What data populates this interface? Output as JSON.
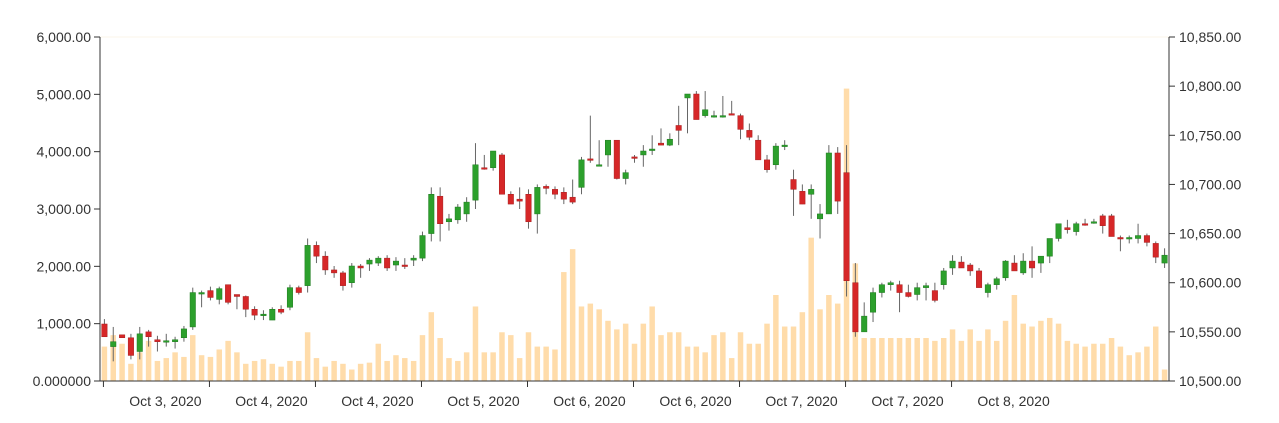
{
  "chart_data": {
    "type": "candlestick+bar",
    "grid": false,
    "legend": "none",
    "colors": {
      "up": "#2ca02c",
      "down": "#d62728",
      "volume": "#ffdcaa",
      "wick": "#666666"
    },
    "left_axis": {
      "ticks": [
        0,
        1000,
        2000,
        3000,
        4000,
        5000,
        6000
      ],
      "tick_labels": [
        "0.000000",
        "1,000.00",
        "2,000.00",
        "3,000.00",
        "4,000.00",
        "5,000.00",
        "6,000.00"
      ],
      "ylim": [
        0,
        6000
      ]
    },
    "right_axis": {
      "ticks": [
        10500,
        10550,
        10600,
        10650,
        10700,
        10750,
        10800,
        10850
      ],
      "tick_labels": [
        "10,500.00",
        "10,550.00",
        "10,600.00",
        "10,650.00",
        "10,700.00",
        "10,750.00",
        "10,800.00",
        "10,850.00"
      ],
      "ylim": [
        10500,
        10850
      ]
    },
    "x_tick_labels": [
      "Oct 3, 2020",
      "Oct 4, 2020",
      "Oct 4, 2020",
      "Oct 5, 2020",
      "Oct 6, 2020",
      "Oct 6, 2020",
      "Oct 7, 2020",
      "Oct 7, 2020",
      "Oct 8, 2020"
    ],
    "x_tick_positions": [
      6,
      18,
      30,
      42,
      54,
      66,
      78,
      90,
      102
    ],
    "candles": [
      [
        10558,
        10563,
        10545,
        10545
      ],
      [
        10535,
        10555,
        10520,
        10540
      ],
      [
        10547,
        10546,
        10545,
        10544
      ],
      [
        10544,
        10548,
        10522,
        10526
      ],
      [
        10530,
        10555,
        10522,
        10548
      ],
      [
        10550,
        10552,
        10535,
        10545
      ],
      [
        10542,
        10546,
        10530,
        10540
      ],
      [
        10540,
        10548,
        10535,
        10541
      ],
      [
        10540,
        10545,
        10533,
        10542
      ],
      [
        10544,
        10556,
        10540,
        10553
      ],
      [
        10555,
        10595,
        10552,
        10590
      ],
      [
        10590,
        10592,
        10575,
        10590
      ],
      [
        10592,
        10596,
        10582,
        10585
      ],
      [
        10583,
        10596,
        10578,
        10594
      ],
      [
        10598,
        10598,
        10578,
        10580
      ],
      [
        10588,
        10588,
        10573,
        10586
      ],
      [
        10586,
        10587,
        10565,
        10573
      ],
      [
        10573,
        10576,
        10562,
        10567
      ],
      [
        10568,
        10572,
        10562,
        10568
      ],
      [
        10562,
        10575,
        10562,
        10573
      ],
      [
        10573,
        10577,
        10568,
        10570
      ],
      [
        10575,
        10598,
        10572,
        10595
      ],
      [
        10595,
        10597,
        10588,
        10590
      ],
      [
        10597,
        10645,
        10590,
        10638
      ],
      [
        10638,
        10642,
        10620,
        10627
      ],
      [
        10627,
        10632,
        10608,
        10613
      ],
      [
        10613,
        10617,
        10605,
        10610
      ],
      [
        10610,
        10612,
        10592,
        10597
      ],
      [
        10600,
        10620,
        10595,
        10617
      ],
      [
        10617,
        10619,
        10605,
        10615
      ],
      [
        10619,
        10625,
        10612,
        10623
      ],
      [
        10620,
        10627,
        10617,
        10625
      ],
      [
        10625,
        10628,
        10612,
        10615
      ],
      [
        10618,
        10626,
        10612,
        10622
      ],
      [
        10618,
        10625,
        10614,
        10617
      ],
      [
        10623,
        10628,
        10617,
        10625
      ],
      [
        10625,
        10652,
        10622,
        10648
      ],
      [
        10650,
        10697,
        10642,
        10690
      ],
      [
        10688,
        10697,
        10642,
        10660
      ],
      [
        10662,
        10670,
        10653,
        10665
      ],
      [
        10664,
        10680,
        10660,
        10677
      ],
      [
        10670,
        10687,
        10662,
        10682
      ],
      [
        10684,
        10742,
        10675,
        10720
      ],
      [
        10717,
        10730,
        10715,
        10716
      ],
      [
        10717,
        10734,
        10714,
        10734
      ],
      [
        10730,
        10732,
        10690,
        10690
      ],
      [
        10690,
        10693,
        10682,
        10680
      ],
      [
        10685,
        10697,
        10675,
        10683
      ],
      [
        10690,
        10695,
        10655,
        10662
      ],
      [
        10670,
        10700,
        10650,
        10697
      ],
      [
        10698,
        10700,
        10690,
        10696
      ],
      [
        10695,
        10698,
        10685,
        10690
      ],
      [
        10692,
        10697,
        10680,
        10685
      ],
      [
        10687,
        10705,
        10680,
        10682
      ],
      [
        10697,
        10728,
        10690,
        10725
      ],
      [
        10726,
        10770,
        10722,
        10725
      ],
      [
        10720,
        10745,
        10720,
        10720
      ],
      [
        10730,
        10745,
        10718,
        10745
      ],
      [
        10745,
        10745,
        10705,
        10706
      ],
      [
        10706,
        10715,
        10700,
        10712
      ],
      [
        10728,
        10730,
        10722,
        10727
      ],
      [
        10730,
        10740,
        10718,
        10734
      ],
      [
        10736,
        10750,
        10730,
        10736
      ],
      [
        10742,
        10757,
        10740,
        10740
      ],
      [
        10740,
        10752,
        10739,
        10746
      ],
      [
        10760,
        10780,
        10740,
        10755
      ],
      [
        10788,
        10792,
        10752,
        10792
      ],
      [
        10792,
        10795,
        10766,
        10766
      ],
      [
        10770,
        10795,
        10768,
        10776
      ],
      [
        10770,
        10775,
        10768,
        10770
      ],
      [
        10770,
        10790,
        10768,
        10770
      ],
      [
        10772,
        10785,
        10772,
        10771
      ],
      [
        10770,
        10772,
        10746,
        10756
      ],
      [
        10755,
        10762,
        10745,
        10748
      ],
      [
        10745,
        10750,
        10725,
        10725
      ],
      [
        10725,
        10730,
        10712,
        10715
      ],
      [
        10720,
        10742,
        10715,
        10739
      ],
      [
        10740,
        10745,
        10735,
        10740
      ],
      [
        10705,
        10715,
        10668,
        10695
      ],
      [
        10693,
        10700,
        10680,
        10680
      ],
      [
        10690,
        10700,
        10665,
        10695
      ],
      [
        10665,
        10680,
        10645,
        10670
      ],
      [
        10670,
        10740,
        10670,
        10732
      ],
      [
        10732,
        10738,
        10670,
        10683
      ],
      [
        10712,
        10740,
        10586,
        10602
      ],
      [
        10600,
        10620,
        10545,
        10550
      ],
      [
        10550,
        10580,
        10550,
        10566
      ],
      [
        10570,
        10595,
        10560,
        10590
      ],
      [
        10590,
        10600,
        10585,
        10598
      ],
      [
        10598,
        10602,
        10592,
        10600
      ],
      [
        10598,
        10602,
        10570,
        10590
      ],
      [
        10590,
        10598,
        10585,
        10586
      ],
      [
        10588,
        10600,
        10582,
        10595
      ],
      [
        10595,
        10600,
        10582,
        10597
      ],
      [
        10592,
        10600,
        10580,
        10582
      ],
      [
        10598,
        10615,
        10593,
        10612
      ],
      [
        10615,
        10628,
        10608,
        10622
      ],
      [
        10621,
        10627,
        10615,
        10615
      ],
      [
        10618,
        10620,
        10607,
        10612
      ],
      [
        10612,
        10615,
        10595,
        10595
      ],
      [
        10590,
        10600,
        10585,
        10598
      ],
      [
        10598,
        10606,
        10593,
        10604
      ],
      [
        10605,
        10623,
        10602,
        10622
      ],
      [
        10620,
        10628,
        10615,
        10612
      ],
      [
        10610,
        10630,
        10608,
        10622
      ],
      [
        10622,
        10637,
        10605,
        10615
      ],
      [
        10620,
        10627,
        10610,
        10627
      ],
      [
        10627,
        10642,
        10620,
        10645
      ],
      [
        10645,
        10660,
        10642,
        10660
      ],
      [
        10656,
        10664,
        10650,
        10654
      ],
      [
        10652,
        10662,
        10648,
        10660
      ],
      [
        10660,
        10665,
        10658,
        10659
      ],
      [
        10662,
        10665,
        10660,
        10662
      ],
      [
        10668,
        10670,
        10650,
        10658
      ],
      [
        10668,
        10670,
        10648,
        10647
      ],
      [
        10646,
        10648,
        10632,
        10645
      ],
      [
        10646,
        10648,
        10640,
        10646
      ],
      [
        10645,
        10660,
        10640,
        10648
      ],
      [
        10648,
        10650,
        10637,
        10641
      ],
      [
        10640,
        10642,
        10620,
        10626
      ],
      [
        10620,
        10635,
        10615,
        10628
      ]
    ],
    "volume": [
      600,
      800,
      650,
      300,
      500,
      700,
      350,
      400,
      500,
      420,
      800,
      450,
      420,
      550,
      700,
      500,
      300,
      350,
      380,
      300,
      250,
      350,
      350,
      850,
      400,
      250,
      350,
      300,
      200,
      300,
      320,
      650,
      350,
      450,
      400,
      350,
      800,
      1200,
      750,
      400,
      350,
      500,
      1300,
      500,
      500,
      850,
      800,
      400,
      850,
      600,
      600,
      550,
      1900,
      2300,
      1300,
      1350,
      1250,
      1050,
      900,
      1000,
      650,
      1000,
      1300,
      800,
      850,
      850,
      600,
      600,
      500,
      800,
      850,
      400,
      850,
      650,
      650,
      1000,
      1500,
      950,
      950,
      1200,
      2500,
      1250,
      1500,
      1350,
      5100,
      2050,
      750,
      750,
      750,
      750,
      750,
      750,
      750,
      750,
      700,
      750,
      900,
      700,
      900,
      700,
      900,
      700,
      1050,
      1500,
      1000,
      950,
      1050,
      1100,
      1000,
      700,
      650,
      600,
      650,
      650,
      750,
      600,
      450,
      500,
      600,
      950,
      200
    ]
  }
}
